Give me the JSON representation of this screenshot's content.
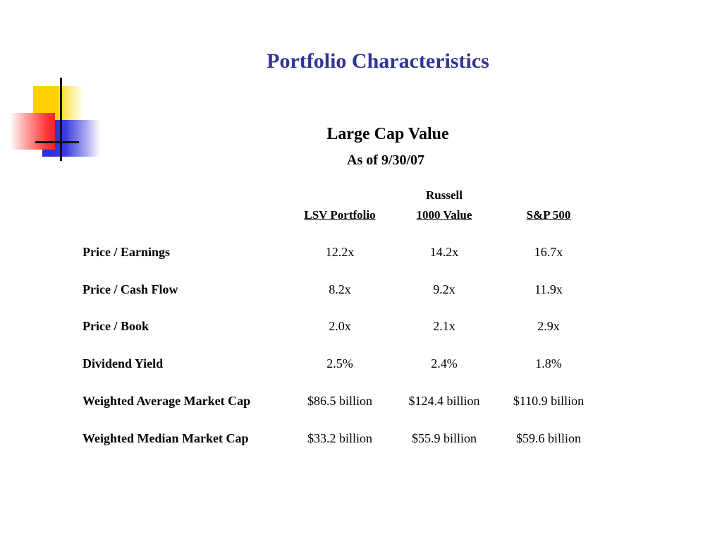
{
  "title": "Portfolio Characteristics",
  "subtitle": "Large Cap Value",
  "as_of": "As of 9/30/07",
  "columns": {
    "col1": {
      "line2": "LSV Portfolio"
    },
    "col2": {
      "line1": "Russell",
      "line2": "1000 Value"
    },
    "col3": {
      "line2": "S&P 500"
    }
  },
  "rows": [
    {
      "label": "Price / Earnings",
      "values": [
        "12.2x",
        "14.2x",
        "16.7x"
      ]
    },
    {
      "label": "Price / Cash Flow",
      "values": [
        "8.2x",
        "9.2x",
        "11.9x"
      ]
    },
    {
      "label": "Price / Book",
      "values": [
        "2.0x",
        "2.1x",
        "2.9x"
      ]
    },
    {
      "label": "Dividend Yield",
      "values": [
        "2.5%",
        "2.4%",
        "1.8%"
      ]
    },
    {
      "label": "Weighted Average Market Cap",
      "values": [
        "$86.5 billion",
        "$124.4 billion",
        "$110.9 billion"
      ]
    },
    {
      "label": "Weighted Median Market Cap",
      "values": [
        "$33.2 billion",
        "$55.9 billion",
        "$59.6 billion"
      ]
    }
  ],
  "colors": {
    "title": "#333399",
    "logo_yellow": "#ffd200",
    "logo_blue": "#2b2bd8",
    "logo_red": "#ff2020"
  }
}
